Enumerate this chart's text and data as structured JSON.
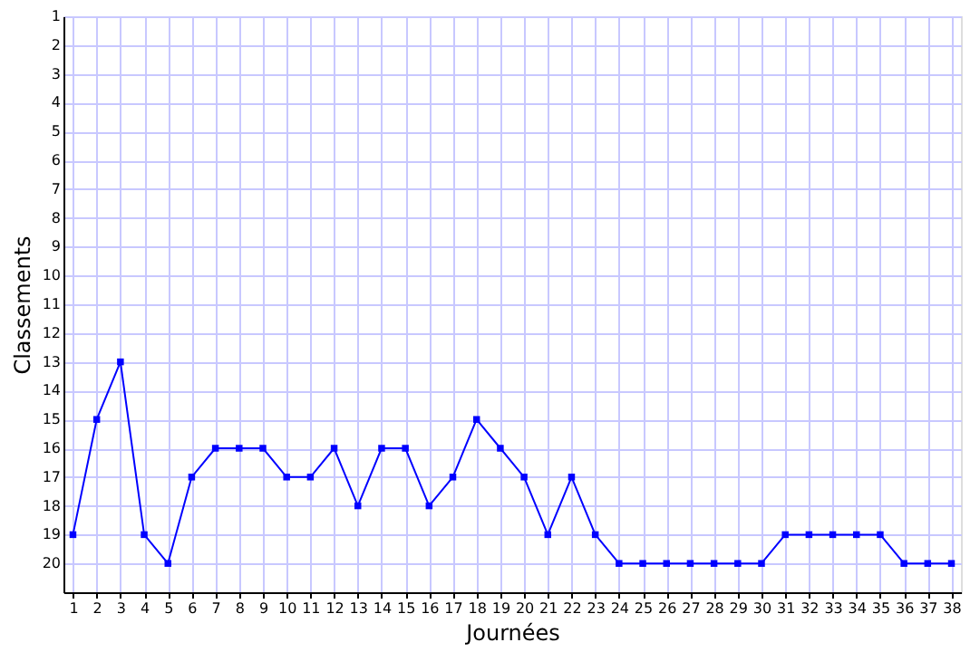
{
  "chart_data": {
    "type": "line",
    "xlabel": "Journées",
    "ylabel": "Classements",
    "x": [
      1,
      2,
      3,
      4,
      5,
      6,
      7,
      8,
      9,
      10,
      11,
      12,
      13,
      14,
      15,
      16,
      17,
      18,
      19,
      20,
      21,
      22,
      23,
      24,
      25,
      26,
      27,
      28,
      29,
      30,
      31,
      32,
      33,
      34,
      35,
      36,
      37,
      38
    ],
    "series": [
      {
        "color": "#0000ff",
        "values": [
          19,
          15,
          13,
          19,
          20,
          17,
          16,
          16,
          16,
          17,
          17,
          16,
          18,
          16,
          16,
          18,
          17,
          15,
          16,
          17,
          19,
          17,
          19,
          20,
          20,
          20,
          20,
          20,
          20,
          20,
          19,
          19,
          19,
          19,
          19,
          20,
          20,
          20
        ]
      }
    ],
    "xlim": [
      0.6,
      38.4
    ],
    "xticks": [
      1,
      2,
      3,
      4,
      5,
      6,
      7,
      8,
      9,
      10,
      11,
      12,
      13,
      14,
      15,
      16,
      17,
      18,
      19,
      20,
      21,
      22,
      23,
      24,
      25,
      26,
      27,
      28,
      29,
      30,
      31,
      32,
      33,
      34,
      35,
      36,
      37,
      38
    ],
    "ylim": [
      21,
      1
    ],
    "yticks": [
      1,
      2,
      3,
      4,
      5,
      6,
      7,
      8,
      9,
      10,
      11,
      12,
      13,
      14,
      15,
      16,
      17,
      18,
      19,
      20,
      {
        "value": 21,
        "label": null
      }
    ],
    "grid": true,
    "marker": "square",
    "line_style": "solid"
  }
}
